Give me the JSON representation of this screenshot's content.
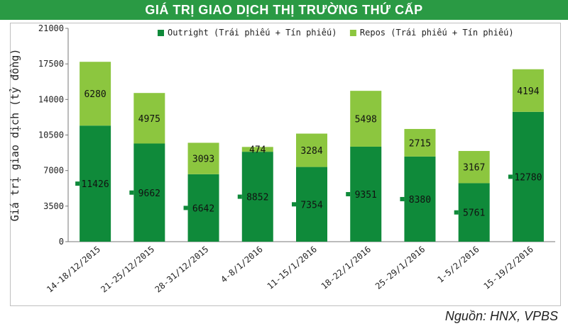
{
  "header": {
    "title": "GIÁ TRỊ GIAO DỊCH THỊ TRƯỜNG THỨ CẤP"
  },
  "footer": {
    "source": "Nguồn: HNX, VPBS"
  },
  "chart_data": {
    "type": "bar",
    "stacked": true,
    "title": "GIÁ TRỊ GIAO DỊCH THỊ TRƯỜNG THỨ CẤP",
    "xlabel": "",
    "ylabel": "Giá trị giao dịch (tỷ đồng)",
    "ylim": [
      0,
      21000
    ],
    "yticks": [
      0,
      3500,
      7000,
      10500,
      14000,
      17500,
      21000
    ],
    "legend_position": "top-center",
    "grid": false,
    "categories": [
      "14-18/12/2015",
      "21-25/12/2015",
      "28-31/12/2015",
      "4-8/1/2016",
      "11-15/1/2016",
      "18-22/1/2016",
      "25-29/1/2016",
      "1-5/2/2016",
      "15-19/2/2016"
    ],
    "series": [
      {
        "name": "Outright (Trái phiếu + Tín phiếu)",
        "color": "#0f8a3a",
        "values": [
          11426,
          9662,
          6642,
          8852,
          7354,
          9351,
          8380,
          5761,
          12780
        ]
      },
      {
        "name": "Repos (Trái phiếu + Tín phiếu)",
        "color": "#8cc63f",
        "values": [
          6280,
          4975,
          3093,
          474,
          3284,
          5498,
          2715,
          3167,
          4194
        ]
      }
    ]
  }
}
